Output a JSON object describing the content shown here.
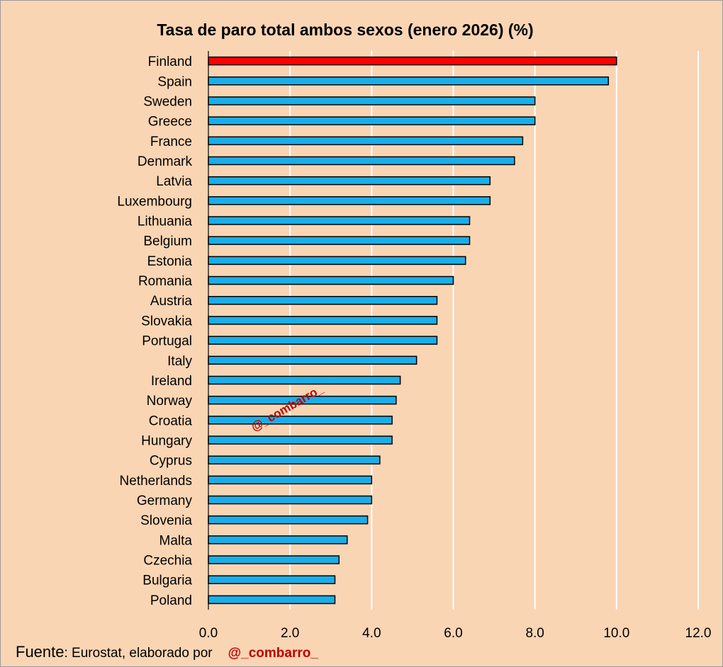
{
  "chart_data": {
    "type": "bar",
    "orientation": "horizontal",
    "title": "Tasa de paro total ambos sexos (enero 2026) (%)",
    "categories": [
      "Finland",
      "Spain",
      "Sweden",
      "Greece",
      "France",
      "Denmark",
      "Latvia",
      "Luxembourg",
      "Lithuania",
      "Belgium",
      "Estonia",
      "Romania",
      "Austria",
      "Slovakia",
      "Portugal",
      "Italy",
      "Ireland",
      "Norway",
      "Croatia",
      "Hungary",
      "Cyprus",
      "Netherlands",
      "Germany",
      "Slovenia",
      "Malta",
      "Czechia",
      "Bulgaria",
      "Poland"
    ],
    "values": [
      10.0,
      9.8,
      8.0,
      8.0,
      7.7,
      7.5,
      6.9,
      6.9,
      6.4,
      6.4,
      6.3,
      6.0,
      5.6,
      5.6,
      5.6,
      5.1,
      4.7,
      4.6,
      4.5,
      4.5,
      4.2,
      4.0,
      4.0,
      3.9,
      3.4,
      3.2,
      3.1,
      3.1
    ],
    "xlim": [
      0,
      12
    ],
    "xticks": [
      0,
      2,
      4,
      6,
      8,
      10,
      12
    ],
    "tick_labels": [
      "0.0",
      "2.0",
      "4.0",
      "6.0",
      "8.0",
      "10.0",
      "12.0"
    ],
    "grid": true,
    "highlight_category": "Finland",
    "colors": {
      "bar": "#1aaee8",
      "highlight": "#ff0000",
      "bar_edge": "#000000",
      "background": "#fad5b4",
      "grid": "#ffffff"
    }
  },
  "source": {
    "prefix": "Fuente",
    "text": ": Eurostat, elaborado por",
    "handle": "@_combarro_"
  },
  "watermark": "@_combarro_"
}
